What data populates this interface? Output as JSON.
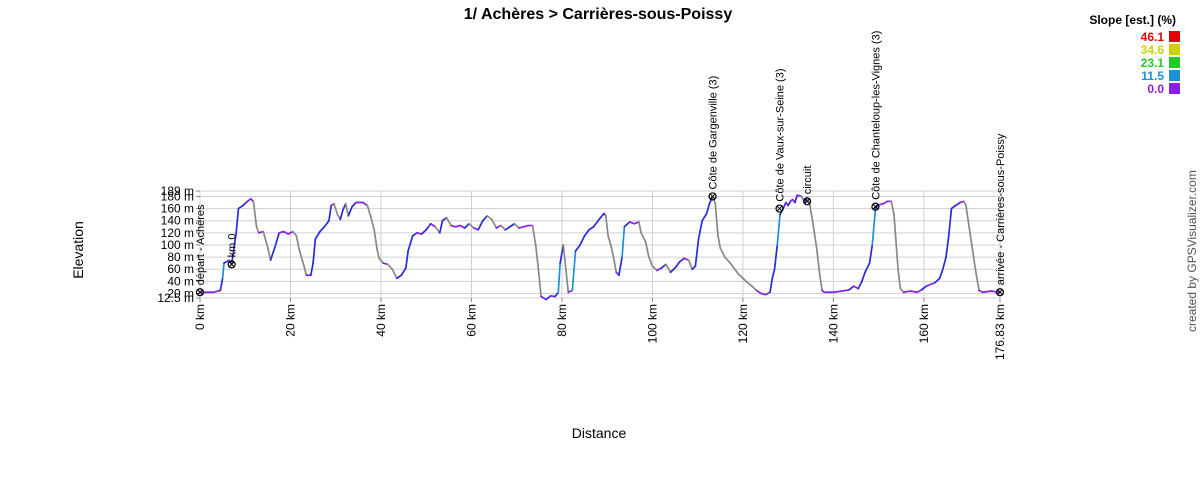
{
  "chart_data": {
    "type": "area",
    "title": "1/ Achères > Carrières-sous-Poissy",
    "xlabel": "Distance",
    "ylabel": "Elevation",
    "xlim": [
      0,
      176.83
    ],
    "ylim": [
      12.5,
      189
    ],
    "x_ticks": [
      {
        "value": 0,
        "label": "0 km"
      },
      {
        "value": 20,
        "label": "20 km"
      },
      {
        "value": 40,
        "label": "40 km"
      },
      {
        "value": 60,
        "label": "60 km"
      },
      {
        "value": 80,
        "label": "80 km"
      },
      {
        "value": 100,
        "label": "100 km"
      },
      {
        "value": 120,
        "label": "120 km"
      },
      {
        "value": 140,
        "label": "140 km"
      },
      {
        "value": 160,
        "label": "160 km"
      },
      {
        "value": 176.83,
        "label": "176.83 km"
      }
    ],
    "y_ticks": [
      {
        "value": 12.5,
        "label": "12.5 m"
      },
      {
        "value": 20,
        "label": "20 m"
      },
      {
        "value": 40,
        "label": "40 m"
      },
      {
        "value": 60,
        "label": "60 m"
      },
      {
        "value": 80,
        "label": "80 m"
      },
      {
        "value": 100,
        "label": "100 m"
      },
      {
        "value": 120,
        "label": "120 m"
      },
      {
        "value": 140,
        "label": "140 m"
      },
      {
        "value": 160,
        "label": "160 m"
      },
      {
        "value": 180,
        "label": "180 m"
      },
      {
        "value": 189,
        "label": "189 m"
      }
    ],
    "grid": true,
    "profile": [
      [
        0,
        22
      ],
      [
        3,
        22
      ],
      [
        4.5,
        25
      ],
      [
        5,
        45
      ],
      [
        5.3,
        70
      ],
      [
        6.5,
        75
      ],
      [
        7,
        68
      ],
      [
        8,
        120
      ],
      [
        8.5,
        160
      ],
      [
        9.5,
        165
      ],
      [
        10.5,
        172
      ],
      [
        11.2,
        176
      ],
      [
        11.8,
        172
      ],
      [
        12.5,
        130
      ],
      [
        13,
        120
      ],
      [
        14,
        122
      ],
      [
        15,
        95
      ],
      [
        15.6,
        75
      ],
      [
        16.5,
        95
      ],
      [
        17.5,
        120
      ],
      [
        18.5,
        122
      ],
      [
        19.5,
        118
      ],
      [
        20.5,
        122
      ],
      [
        21.3,
        115
      ],
      [
        22,
        90
      ],
      [
        23,
        65
      ],
      [
        23.5,
        50
      ],
      [
        24.5,
        50
      ],
      [
        25,
        70
      ],
      [
        25.5,
        110
      ],
      [
        26.5,
        122
      ],
      [
        27.5,
        130
      ],
      [
        28.5,
        140
      ],
      [
        29,
        165
      ],
      [
        29.6,
        168
      ],
      [
        30.4,
        150
      ],
      [
        31,
        142
      ],
      [
        31.6,
        158
      ],
      [
        32.2,
        168
      ],
      [
        32.8,
        148
      ],
      [
        33.6,
        163
      ],
      [
        34.5,
        170
      ],
      [
        36,
        170
      ],
      [
        37,
        165
      ],
      [
        37.8,
        145
      ],
      [
        38.5,
        125
      ],
      [
        39.2,
        90
      ],
      [
        39.6,
        78
      ],
      [
        40.5,
        70
      ],
      [
        41.5,
        68
      ],
      [
        42.5,
        60
      ],
      [
        43.5,
        45
      ],
      [
        44.5,
        50
      ],
      [
        45.5,
        62
      ],
      [
        46,
        90
      ],
      [
        47,
        115
      ],
      [
        48,
        120
      ],
      [
        49,
        118
      ],
      [
        50,
        125
      ],
      [
        51,
        135
      ],
      [
        52,
        130
      ],
      [
        53,
        120
      ],
      [
        53.6,
        140
      ],
      [
        54.5,
        145
      ],
      [
        55.5,
        132
      ],
      [
        56.5,
        130
      ],
      [
        57.5,
        132
      ],
      [
        58.5,
        128
      ],
      [
        59.5,
        135
      ],
      [
        60.5,
        128
      ],
      [
        61.5,
        125
      ],
      [
        62.5,
        140
      ],
      [
        63.5,
        148
      ],
      [
        64.5,
        142
      ],
      [
        65.5,
        128
      ],
      [
        66.5,
        132
      ],
      [
        67.5,
        125
      ],
      [
        68.5,
        130
      ],
      [
        69.5,
        135
      ],
      [
        70.5,
        128
      ],
      [
        71.5,
        130
      ],
      [
        72.5,
        132
      ],
      [
        73.5,
        132
      ],
      [
        74.2,
        100
      ],
      [
        74.8,
        60
      ],
      [
        75.4,
        15
      ],
      [
        76.5,
        10
      ],
      [
        77.5,
        16
      ],
      [
        78.5,
        15
      ],
      [
        79.2,
        22
      ],
      [
        79.6,
        70
      ],
      [
        80.3,
        100
      ],
      [
        80.8,
        65
      ],
      [
        81.4,
        22
      ],
      [
        82.3,
        25
      ],
      [
        83,
        90
      ],
      [
        84,
        100
      ],
      [
        85,
        115
      ],
      [
        86,
        125
      ],
      [
        87,
        130
      ],
      [
        88,
        140
      ],
      [
        89.3,
        152
      ],
      [
        89.7,
        148
      ],
      [
        90.2,
        115
      ],
      [
        90.8,
        100
      ],
      [
        91.4,
        80
      ],
      [
        92,
        55
      ],
      [
        92.6,
        50
      ],
      [
        93.3,
        80
      ],
      [
        93.8,
        130
      ],
      [
        95,
        138
      ],
      [
        96,
        135
      ],
      [
        97,
        138
      ],
      [
        97.5,
        120
      ],
      [
        98.5,
        105
      ],
      [
        99.2,
        80
      ],
      [
        100,
        65
      ],
      [
        101,
        58
      ],
      [
        102,
        62
      ],
      [
        103,
        68
      ],
      [
        104,
        55
      ],
      [
        105,
        62
      ],
      [
        106,
        72
      ],
      [
        107,
        78
      ],
      [
        108,
        75
      ],
      [
        108.8,
        60
      ],
      [
        109.5,
        65
      ],
      [
        110.2,
        110
      ],
      [
        111,
        140
      ],
      [
        112,
        152
      ],
      [
        112.6,
        168
      ],
      [
        113.3,
        180
      ],
      [
        113.9,
        168
      ],
      [
        114.5,
        115
      ],
      [
        115,
        95
      ],
      [
        116,
        80
      ],
      [
        117,
        72
      ],
      [
        118,
        62
      ],
      [
        119,
        52
      ],
      [
        120,
        45
      ],
      [
        121,
        38
      ],
      [
        122,
        32
      ],
      [
        123,
        25
      ],
      [
        124,
        20
      ],
      [
        125,
        18
      ],
      [
        126,
        22
      ],
      [
        126.5,
        45
      ],
      [
        127,
        60
      ],
      [
        127.6,
        100
      ],
      [
        128.2,
        150
      ],
      [
        128.9,
        160
      ],
      [
        129.5,
        170
      ],
      [
        130,
        165
      ],
      [
        130.5,
        172
      ],
      [
        131,
        175
      ],
      [
        131.5,
        170
      ],
      [
        132,
        182
      ],
      [
        133,
        180
      ],
      [
        133.6,
        170
      ],
      [
        134.2,
        178
      ],
      [
        134.7,
        170
      ],
      [
        135.5,
        135
      ],
      [
        136.3,
        95
      ],
      [
        137,
        50
      ],
      [
        137.5,
        25
      ],
      [
        138,
        22
      ],
      [
        140,
        22
      ],
      [
        142,
        24
      ],
      [
        143.5,
        26
      ],
      [
        144.5,
        32
      ],
      [
        145.5,
        28
      ],
      [
        146.3,
        40
      ],
      [
        147,
        55
      ],
      [
        148,
        70
      ],
      [
        148.6,
        100
      ],
      [
        149.3,
        160
      ],
      [
        150,
        166
      ],
      [
        151,
        168
      ],
      [
        152,
        172
      ],
      [
        152.8,
        172
      ],
      [
        153.4,
        150
      ],
      [
        153.8,
        110
      ],
      [
        154.3,
        60
      ],
      [
        154.8,
        28
      ],
      [
        155.5,
        22
      ],
      [
        157,
        24
      ],
      [
        158.5,
        22
      ],
      [
        159.5,
        26
      ],
      [
        160.5,
        32
      ],
      [
        161.5,
        35
      ],
      [
        162.5,
        38
      ],
      [
        163.5,
        45
      ],
      [
        164.2,
        60
      ],
      [
        164.9,
        80
      ],
      [
        165.5,
        115
      ],
      [
        166.1,
        160
      ],
      [
        167,
        165
      ],
      [
        168,
        170
      ],
      [
        168.8,
        172
      ],
      [
        169.3,
        165
      ],
      [
        170,
        130
      ],
      [
        170.8,
        90
      ],
      [
        171.5,
        55
      ],
      [
        172.2,
        25
      ],
      [
        173,
        22
      ],
      [
        175,
        24
      ],
      [
        176.5,
        22
      ],
      [
        176.83,
        22
      ]
    ],
    "waypoints": [
      {
        "x": 0,
        "y": 22,
        "label": "départ - Achères"
      },
      {
        "x": 7,
        "y": 68,
        "label": "km 0"
      },
      {
        "x": 113.3,
        "y": 180,
        "label": "Côte de Gargenville (3)"
      },
      {
        "x": 128.1,
        "y": 160,
        "label": "Côte de Vaux-sur-Seine (3)"
      },
      {
        "x": 134.2,
        "y": 172,
        "label": "circuit"
      },
      {
        "x": 149.3,
        "y": 163,
        "label": "Côte de Chanteloup-les-Vignes (3)"
      },
      {
        "x": 176.83,
        "y": 22,
        "label": "arrivée - Carrières-sous-Poissy"
      }
    ],
    "legend": {
      "title": "Slope [est.] (%)",
      "position": "top-right",
      "items": [
        {
          "value": "46.1",
          "color": "#e60000"
        },
        {
          "value": "34.6",
          "color": "#c8d400"
        },
        {
          "value": "23.1",
          "color": "#22cc22"
        },
        {
          "value": "11.5",
          "color": "#1e90d8"
        },
        {
          "value": "0.0",
          "color": "#8a1ee6"
        }
      ]
    },
    "colors": {
      "climb_steep": "#1e90d8",
      "climb": "#2a2ad8",
      "flat": "#8a1ee6",
      "descent": "#888888"
    },
    "credit": "created by GPSVisualizer.com"
  }
}
